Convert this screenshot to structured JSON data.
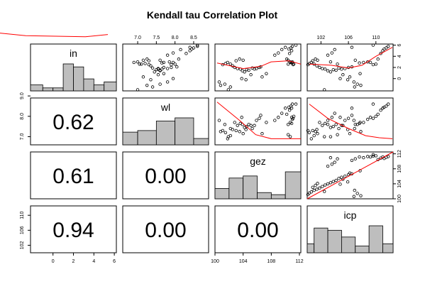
{
  "chart_data": {
    "type": "scatter-matrix",
    "title": "Kendall tau Correlation Plot",
    "variables": [
      "in",
      "wl",
      "gez",
      "icp"
    ],
    "colors": {
      "bar": "#bebebe",
      "smooth": "#ff0000",
      "point": "#000000"
    },
    "correlations": [
      {
        "row": "wl",
        "col": "in",
        "label": "0.62"
      },
      {
        "row": "gez",
        "col": "in",
        "label": "0.61"
      },
      {
        "row": "gez",
        "col": "wl",
        "label": "0.00"
      },
      {
        "row": "icp",
        "col": "in",
        "label": "0.94"
      },
      {
        "row": "icp",
        "col": "wl",
        "label": "0.00"
      },
      {
        "row": "icp",
        "col": "gez",
        "label": "0.00"
      }
    ],
    "ranges": {
      "in": [
        -2.2,
        6.2
      ],
      "wl": [
        6.6,
        8.9
      ],
      "gez": [
        100,
        112.2
      ],
      "icp": [
        100,
        112.5
      ]
    },
    "ticks": {
      "in": [
        0,
        2,
        4,
        6
      ],
      "wl": [
        7.0,
        7.5,
        8.0,
        8.5
      ],
      "gez": [
        100,
        104,
        108,
        112
      ],
      "icp": [
        102,
        106,
        110
      ]
    },
    "tick_labels": {
      "in": [
        "0",
        "2",
        "4",
        "6"
      ],
      "wl": [
        "7.0",
        "7.5",
        "8.0",
        "8.5"
      ],
      "gez": [
        "100",
        "104",
        "108",
        "112"
      ],
      "icp": [
        "102",
        "106",
        "110"
      ]
    },
    "left_ticks": {
      "wl": [
        7.0,
        8.0,
        9.0
      ],
      "icp": [
        102,
        106,
        110
      ]
    },
    "left_tick_labels": {
      "wl": [
        "7.0",
        "8.0",
        "9.0"
      ],
      "icp": [
        "102",
        "106",
        "110"
      ]
    },
    "right_ticks": {
      "in": [
        0,
        2,
        4,
        6
      ],
      "icp": [
        100,
        104,
        108,
        112
      ]
    },
    "right_tick_labels": {
      "in": [
        "0",
        "2",
        "4",
        "6"
      ],
      "icp": [
        "100",
        "104",
        "108",
        "112"
      ]
    },
    "histograms": {
      "in": {
        "breaks": [
          -2.2,
          -1,
          0,
          1,
          2,
          3,
          4,
          5,
          6.2
        ],
        "counts": [
          2,
          1,
          1,
          9,
          8,
          4,
          2,
          3
        ]
      },
      "wl": {
        "breaks": [
          6.6,
          7.0,
          7.5,
          8.0,
          8.5,
          8.9
        ],
        "counts": [
          8,
          9,
          15,
          17,
          4
        ]
      },
      "gez": {
        "breaks": [
          100,
          102,
          104,
          106,
          108,
          110,
          112.2
        ],
        "counts": [
          5,
          10,
          11,
          3,
          2,
          13
        ]
      },
      "icp": {
        "breaks": [
          100,
          101,
          103,
          105,
          107,
          109,
          111,
          112.5
        ],
        "counts": [
          4,
          11,
          10,
          7,
          3,
          12,
          4
        ]
      }
    },
    "observations": [
      [
        5.8,
        8.6,
        111.0,
        111.8
      ],
      [
        5.5,
        8.5,
        110.8,
        111.5
      ],
      [
        5.3,
        8.45,
        110.5,
        111.2
      ],
      [
        5.0,
        8.4,
        110.9,
        111.0
      ],
      [
        4.5,
        8.3,
        110.6,
        110.7
      ],
      [
        3.5,
        8.1,
        110.2,
        110.3
      ],
      [
        2.6,
        8.0,
        111.2,
        110.0
      ],
      [
        2.5,
        7.9,
        111.1,
        109.6
      ],
      [
        2.9,
        7.95,
        110.9,
        109.2
      ],
      [
        3.0,
        7.85,
        111.0,
        108.8
      ],
      [
        2.9,
        7.7,
        110.7,
        108.2
      ],
      [
        2.8,
        7.65,
        110.9,
        107.6
      ],
      [
        3.3,
        7.6,
        110.4,
        107.0
      ],
      [
        2.1,
        8.05,
        106.5,
        106.5
      ],
      [
        2.0,
        7.9,
        106.3,
        106.0
      ],
      [
        1.8,
        7.8,
        105.9,
        105.5
      ],
      [
        1.7,
        7.55,
        105.6,
        105.0
      ],
      [
        1.9,
        7.4,
        105.3,
        104.6
      ],
      [
        1.5,
        7.6,
        104.8,
        104.2
      ],
      [
        1.6,
        7.5,
        104.5,
        103.8
      ],
      [
        1.2,
        7.45,
        104.2,
        103.4
      ],
      [
        1.4,
        7.6,
        103.9,
        103.0
      ],
      [
        1.7,
        7.65,
        103.6,
        102.6
      ],
      [
        1.8,
        7.55,
        103.2,
        102.2
      ],
      [
        2.0,
        7.7,
        102.8,
        101.8
      ],
      [
        2.3,
        7.35,
        102.5,
        101.4
      ],
      [
        2.6,
        7.05,
        102.2,
        101.0
      ],
      [
        2.9,
        6.9,
        101.8,
        100.6
      ],
      [
        2.7,
        7.2,
        101.5,
        100.3
      ],
      [
        2.5,
        7.3,
        101.1,
        100.1
      ],
      [
        2.6,
        7.1,
        110.4,
        104.4
      ],
      [
        3.0,
        7.0,
        110.7,
        103.4
      ],
      [
        3.3,
        7.15,
        104.0,
        101.5
      ],
      [
        3.5,
        7.25,
        103.5,
        101.2
      ],
      [
        3.2,
        7.3,
        103.0,
        100.8
      ],
      [
        4.2,
        7.8,
        108.5,
        103.0
      ],
      [
        4.6,
        7.95,
        109.0,
        103.6
      ],
      [
        5.2,
        8.15,
        109.5,
        104.0
      ],
      [
        5.6,
        8.4,
        110.0,
        106.5
      ],
      [
        6.0,
        8.6,
        111.5,
        109.6
      ],
      [
        0.0,
        7.95,
        103.8,
        104.8
      ],
      [
        -0.6,
        7.8,
        100.6,
        106.8
      ],
      [
        -1.0,
        7.6,
        101.4,
        107.3
      ],
      [
        -1.5,
        7.4,
        102.2,
        106.9
      ],
      [
        -0.2,
        7.35,
        104.4,
        105.9
      ],
      [
        0.7,
        7.55,
        105.1,
        105.2
      ],
      [
        -1.2,
        7.25,
        100.8,
        107.8
      ],
      [
        0.3,
        7.15,
        106.7,
        106.2
      ],
      [
        -2.0,
        7.0,
        101.9,
        102.5
      ],
      [
        0.9,
        7.7,
        107.3,
        107.7
      ]
    ],
    "smooth": {
      "in_wl": [
        [
          2.8,
          8.5
        ],
        [
          4.0,
          7.7
        ],
        [
          5.6,
          7.5
        ],
        [
          6.2,
          7.9
        ]
      ],
      "in_gez": [
        [
          100.3,
          2.8
        ],
        [
          104.0,
          1.8
        ],
        [
          106.5,
          2.2
        ],
        [
          108.0,
          3.0
        ],
        [
          110.5,
          3.2
        ],
        [
          112.2,
          2.6
        ]
      ],
      "in_icp": [
        [
          100.3,
          2.6
        ],
        [
          103.5,
          2.4
        ],
        [
          106.0,
          1.9
        ],
        [
          108.0,
          2.4
        ],
        [
          110.0,
          4.0
        ],
        [
          112.4,
          5.6
        ]
      ],
      "wl_gez": [
        [
          100.3,
          8.7
        ],
        [
          103.5,
          7.8
        ],
        [
          105.8,
          7.1
        ],
        [
          108.0,
          6.9
        ],
        [
          110.0,
          6.9
        ],
        [
          112.2,
          6.9
        ]
      ],
      "wl_icp": [
        [
          100.3,
          8.6
        ],
        [
          103.0,
          7.9
        ],
        [
          106.0,
          7.4
        ],
        [
          108.5,
          7.05
        ],
        [
          110.5,
          6.95
        ],
        [
          112.4,
          6.9
        ]
      ],
      "gez_icp": [
        [
          100.0,
          100.0
        ],
        [
          112.5,
          112.2
        ]
      ]
    }
  }
}
